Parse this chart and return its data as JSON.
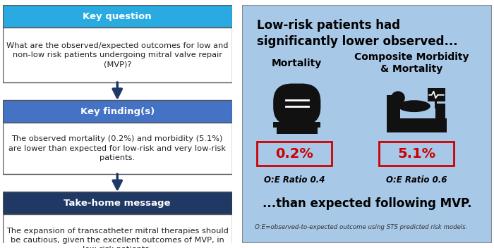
{
  "left_panel": {
    "key_question_header": "Key question",
    "key_question_header_bg": "#29ABE2",
    "key_question_text": "What are the observed/expected outcomes for low and\nnon-low risk patients undergoing mitral valve repair\n(MVP)?",
    "key_findings_header": "Key finding(s)",
    "key_findings_header_bg": "#4472C4",
    "key_findings_text": "The observed mortality (0.2%) and morbidity (5.1%)\nare lower than expected for low-risk and very low-risk\npatients.",
    "take_home_header": "Take-home message",
    "take_home_header_bg": "#1F3864",
    "take_home_text": "The expansion of transcatheter mitral therapies should\nbe cautious, given the excellent outcomes of MVP, in\nlow-risk patients.",
    "header_text_color": "#FFFFFF",
    "body_text_color": "#333333",
    "arrow_color": "#1F3864",
    "box_border_color": "#555555"
  },
  "right_panel": {
    "bg_color": "#A8C8E8",
    "border_color": "#888888",
    "title_line1": "Low-risk patients had",
    "title_line2": "significantly lower observed...",
    "col1_label": "Mortality",
    "col2_label": "Composite Morbidity\n& Mortality",
    "val1": "0.2%",
    "val2": "5.1%",
    "ratio1": "O:E Ratio 0.4",
    "ratio2": "O:E Ratio 0.6",
    "bottom_text": "...than expected following MVP.",
    "footnote": "O:E=observed-to-expected outcome using STS predicted risk models.",
    "val_color": "#CC0000",
    "title_color": "#000000"
  }
}
